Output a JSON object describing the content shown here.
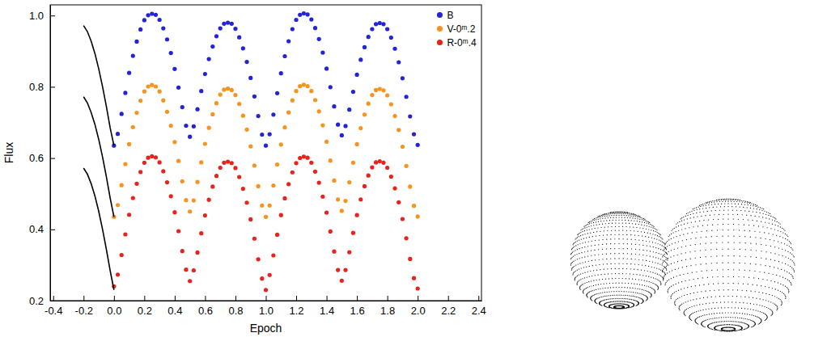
{
  "chart_data": {
    "type": "scatter",
    "x_label": "Epoch",
    "y_label": "Flux",
    "xlim": [
      -0.42,
      2.42
    ],
    "ylim": [
      0.2,
      1.03
    ],
    "xticks": [
      -0.4,
      -0.2,
      {
        "value": 0.0,
        "label": "0.0"
      },
      0.2,
      0.4,
      0.6,
      0.8,
      {
        "value": 1.0,
        "label": "1.0"
      },
      1.2,
      1.4,
      1.6,
      1.8,
      {
        "value": 2.0,
        "label": "2.0"
      },
      2.2,
      2.4
    ],
    "yticks": [
      0.2,
      0.4,
      0.6,
      0.8,
      {
        "value": 1.0,
        "label": "1.0"
      }
    ],
    "legend": "upper right",
    "x": [
      0,
      0.025,
      0.05,
      0.075,
      0.1,
      0.125,
      0.15,
      0.175,
      0.2,
      0.225,
      0.25,
      0.275,
      0.3,
      0.325,
      0.35,
      0.375,
      0.4,
      0.425,
      0.45,
      0.475,
      0.5,
      0.525,
      0.55,
      0.575,
      0.6,
      0.625,
      0.65,
      0.675,
      0.7,
      0.725,
      0.75,
      0.775,
      0.8,
      0.825,
      0.85,
      0.875,
      0.9,
      0.925,
      0.95,
      0.975,
      1.0,
      1.025,
      1.05,
      1.075,
      1.1,
      1.125,
      1.15,
      1.175,
      1.2,
      1.225,
      1.25,
      1.275,
      1.3,
      1.325,
      1.35,
      1.375,
      1.4,
      1.425,
      1.45,
      1.475,
      1.5,
      1.525,
      1.55,
      1.575,
      1.6,
      1.625,
      1.65,
      1.675,
      1.7,
      1.725,
      1.75,
      1.775,
      1.8,
      1.825,
      1.85,
      1.875,
      1.9,
      1.925,
      1.95,
      1.975,
      2.0
    ],
    "series": [
      {
        "name": "B",
        "type": "scatter",
        "marker": "circle",
        "color": "#2323d8",
        "values": [
          0.635,
          0.668,
          0.724,
          0.783,
          0.839,
          0.887,
          0.927,
          0.961,
          0.987,
          1.001,
          1.005,
          1.002,
          0.988,
          0.964,
          0.933,
          0.895,
          0.85,
          0.798,
          0.743,
          0.691,
          0.66,
          0.689,
          0.737,
          0.788,
          0.836,
          0.878,
          0.913,
          0.942,
          0.964,
          0.977,
          0.98,
          0.977,
          0.963,
          0.939,
          0.908,
          0.87,
          0.825,
          0.773,
          0.718,
          0.666,
          0.635,
          0.667,
          0.722,
          0.782,
          0.838,
          0.886,
          0.928,
          0.962,
          0.988,
          1.002,
          1.006,
          1.003,
          0.989,
          0.965,
          0.934,
          0.896,
          0.851,
          0.799,
          0.745,
          0.694,
          0.664,
          0.69,
          0.736,
          0.786,
          0.834,
          0.876,
          0.911,
          0.94,
          0.962,
          0.976,
          0.979,
          0.976,
          0.962,
          0.938,
          0.907,
          0.869,
          0.824,
          0.772,
          0.717,
          0.667,
          0.637
        ]
      },
      {
        "name": "V-0ᵐ.2",
        "type": "scatter",
        "marker": "circle",
        "color": "#f7931e",
        "values": [
          0.435,
          0.468,
          0.524,
          0.583,
          0.639,
          0.687,
          0.727,
          0.761,
          0.787,
          0.801,
          0.805,
          0.801,
          0.787,
          0.762,
          0.73,
          0.691,
          0.645,
          0.592,
          0.535,
          0.482,
          0.45,
          0.481,
          0.533,
          0.588,
          0.64,
          0.685,
          0.723,
          0.754,
          0.778,
          0.792,
          0.795,
          0.791,
          0.777,
          0.752,
          0.719,
          0.68,
          0.633,
          0.579,
          0.521,
          0.467,
          0.435,
          0.467,
          0.523,
          0.582,
          0.638,
          0.686,
          0.728,
          0.762,
          0.788,
          0.802,
          0.806,
          0.802,
          0.788,
          0.763,
          0.731,
          0.692,
          0.646,
          0.593,
          0.537,
          0.484,
          0.452,
          0.48,
          0.532,
          0.587,
          0.639,
          0.684,
          0.722,
          0.753,
          0.777,
          0.791,
          0.794,
          0.79,
          0.776,
          0.751,
          0.718,
          0.679,
          0.632,
          0.578,
          0.52,
          0.466,
          0.436
        ]
      },
      {
        "name": "R-0ᵐ.4",
        "type": "scatter",
        "marker": "circle",
        "color": "#e8231b",
        "values": [
          0.24,
          0.273,
          0.328,
          0.386,
          0.441,
          0.488,
          0.528,
          0.561,
          0.587,
          0.601,
          0.605,
          0.602,
          0.588,
          0.563,
          0.532,
          0.493,
          0.448,
          0.395,
          0.339,
          0.287,
          0.255,
          0.285,
          0.335,
          0.389,
          0.439,
          0.483,
          0.52,
          0.55,
          0.573,
          0.587,
          0.59,
          0.586,
          0.572,
          0.547,
          0.514,
          0.475,
          0.428,
          0.374,
          0.316,
          0.262,
          0.23,
          0.272,
          0.327,
          0.385,
          0.44,
          0.487,
          0.527,
          0.56,
          0.586,
          0.6,
          0.604,
          0.601,
          0.587,
          0.562,
          0.531,
          0.492,
          0.447,
          0.394,
          0.338,
          0.286,
          0.256,
          0.286,
          0.336,
          0.39,
          0.44,
          0.484,
          0.521,
          0.551,
          0.574,
          0.588,
          0.591,
          0.587,
          0.573,
          0.548,
          0.515,
          0.476,
          0.429,
          0.375,
          0.317,
          0.263,
          0.234
        ]
      },
      {
        "type": "line",
        "line_style": "solid",
        "color": "#000000",
        "x": [
          -0.2,
          -0.175,
          -0.15,
          -0.125,
          -0.1,
          -0.075,
          -0.05,
          -0.025,
          0
        ],
        "values": [
          0.972,
          0.955,
          0.928,
          0.893,
          0.85,
          0.8,
          0.745,
          0.685,
          0.635
        ]
      },
      {
        "type": "line",
        "line_style": "solid",
        "color": "#000000",
        "x": [
          -0.2,
          -0.175,
          -0.15,
          -0.125,
          -0.1,
          -0.075,
          -0.05,
          -0.025,
          0
        ],
        "values": [
          0.772,
          0.755,
          0.728,
          0.694,
          0.652,
          0.603,
          0.548,
          0.488,
          0.435
        ]
      },
      {
        "type": "line",
        "line_style": "solid",
        "color": "#000000",
        "x": [
          -0.2,
          -0.175,
          -0.15,
          -0.125,
          -0.1,
          -0.075,
          -0.05,
          -0.025,
          0
        ],
        "values": [
          0.572,
          0.555,
          0.528,
          0.493,
          0.45,
          0.4,
          0.344,
          0.284,
          0.23
        ]
      }
    ]
  }
}
